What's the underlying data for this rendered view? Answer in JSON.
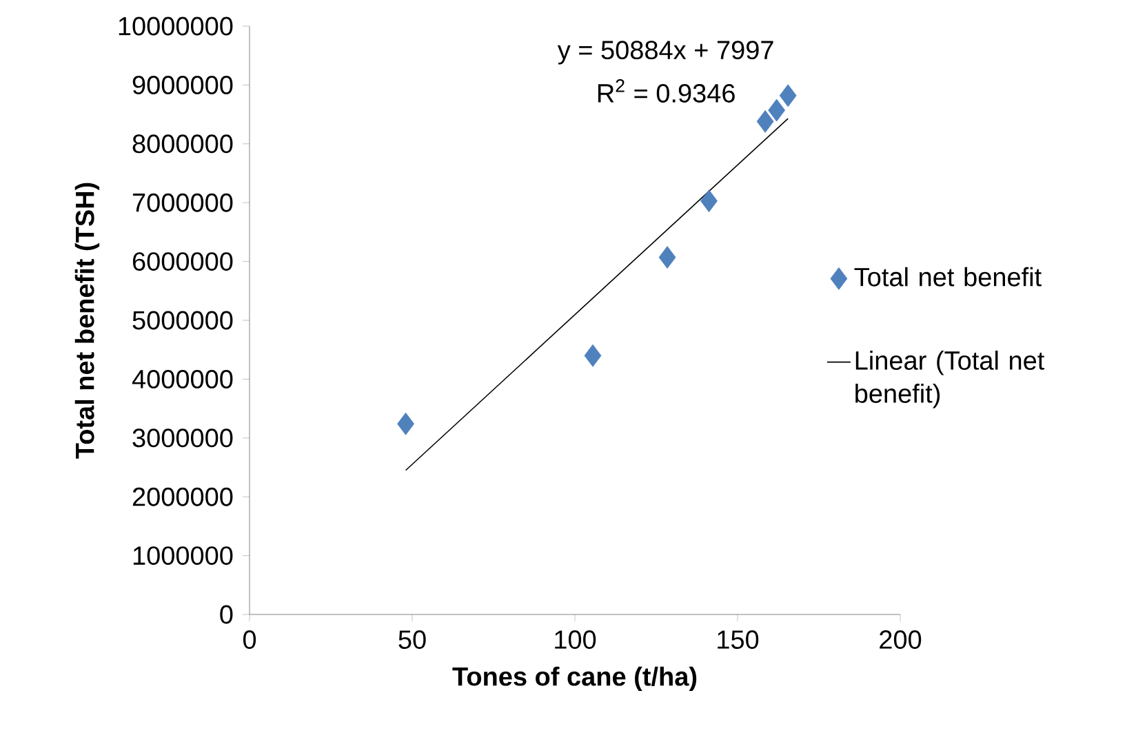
{
  "chart_data": {
    "type": "scatter",
    "xlabel": "Tones of cane (t/ha)",
    "ylabel": "Total net benefit (TSH)",
    "xlim": [
      0,
      200
    ],
    "xticks": [
      0,
      50,
      100,
      150,
      200
    ],
    "ylim": [
      0,
      10000000
    ],
    "yticks": [
      0,
      1000000,
      2000000,
      3000000,
      4000000,
      5000000,
      6000000,
      7000000,
      8000000,
      9000000,
      10000000
    ],
    "grid": false,
    "legend": "right",
    "annotations": [
      "y = 50884x + 7997",
      "R$^{2}$ = 0.9346"
    ],
    "series": [
      {
        "name": "Total net benefit",
        "marker": "diamond",
        "color": "#4f81bd",
        "x": [
          48,
          105.5,
          128.4,
          141.2,
          158.5,
          162,
          165.5
        ],
        "values": [
          3240000,
          4400000,
          6070000,
          7030000,
          8380000,
          8570000,
          8820000
        ]
      },
      {
        "name": "Linear (Total net benefit)",
        "type": "line",
        "marker": "none",
        "color": "#000000",
        "x": [
          48,
          165.5
        ],
        "values": [
          2450000,
          8430000
        ]
      }
    ]
  }
}
